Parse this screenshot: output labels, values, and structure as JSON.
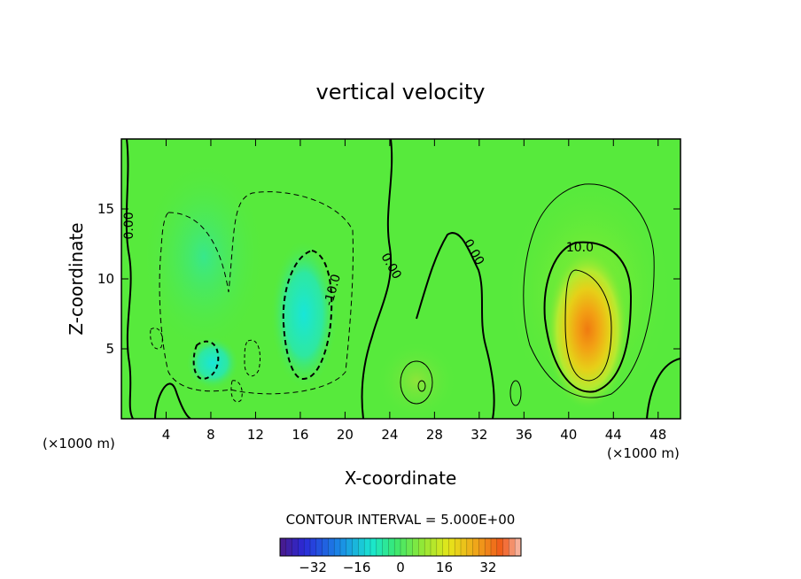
{
  "chart_data": {
    "type": "heatmap",
    "title": "vertical velocity",
    "xlabel": "X-coordinate",
    "ylabel": "Z-coordinate",
    "x_unit": "(×1000 m)",
    "z_unit": "(×1000 m)",
    "xlim": [
      0,
      50
    ],
    "ylim": [
      0,
      20
    ],
    "x_ticks": [
      4,
      8,
      12,
      16,
      20,
      24,
      28,
      32,
      36,
      40,
      44,
      48
    ],
    "y_ticks": [
      5,
      10,
      15
    ],
    "contour_interval_text": "CONTOUR INTERVAL = 5.000E+00",
    "contour_labels": [
      {
        "text": "0.00",
        "x": 0.7,
        "z": 13.8,
        "rot": -90
      },
      {
        "text": "0.00",
        "x": 24.1,
        "z": 10.9,
        "rot": 60
      },
      {
        "text": "0.00",
        "x": 31.5,
        "z": 11.9,
        "rot": 60
      },
      {
        "text": "-10.0",
        "x": 18.9,
        "z": 9.2,
        "rot": -75
      },
      {
        "text": "10.0",
        "x": 41.0,
        "z": 12.2,
        "rot": 0
      }
    ],
    "colorbar": {
      "range": [
        -44,
        44
      ],
      "ticks": [
        -32,
        -16,
        0,
        16,
        32
      ],
      "tick_labels": [
        "−32",
        "−16",
        "0",
        "16",
        "32"
      ]
    },
    "field_features": [
      {
        "kind": "updraft",
        "x": 41.8,
        "z": 6.5,
        "peak": 22
      },
      {
        "kind": "downdraft",
        "x": 16.3,
        "z": 7.5,
        "peak": -13
      },
      {
        "kind": "downdraft",
        "x": 8.0,
        "z": 3.8,
        "peak": -10
      }
    ]
  }
}
